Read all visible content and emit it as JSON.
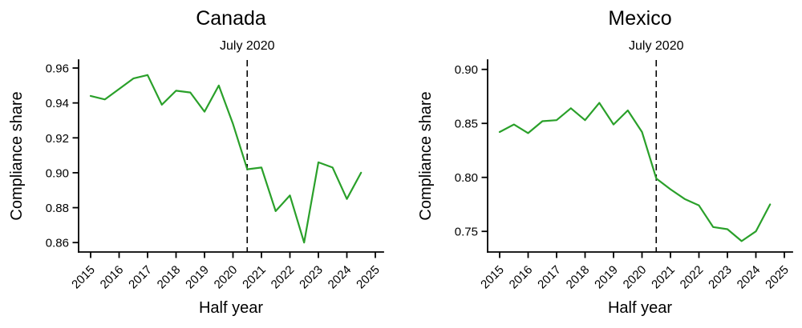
{
  "figure": {
    "background": "#ffffff",
    "text_color": "#000000",
    "axis_color": "#000000"
  },
  "chart_data": [
    {
      "type": "line",
      "title": "Canada",
      "xlabel": "Half year",
      "ylabel": "Compliance share",
      "series_name": "compliance-share",
      "line_color": "#2aa02a",
      "grid": false,
      "legend": null,
      "x": [
        2015,
        2015.5,
        2016,
        2016.5,
        2017,
        2017.5,
        2018,
        2018.5,
        2019,
        2019.5,
        2020,
        2020.5,
        2021,
        2021.5,
        2022,
        2022.5,
        2023,
        2023.5,
        2024,
        2024.5
      ],
      "values": [
        0.944,
        0.942,
        0.948,
        0.954,
        0.956,
        0.939,
        0.947,
        0.946,
        0.935,
        0.95,
        0.928,
        0.902,
        0.903,
        0.878,
        0.887,
        0.86,
        0.906,
        0.903,
        0.885,
        0.9
      ],
      "xticks": [
        2015,
        2016,
        2017,
        2018,
        2019,
        2020,
        2021,
        2022,
        2023,
        2024,
        2025
      ],
      "yticks": [
        0.86,
        0.88,
        0.9,
        0.92,
        0.94,
        0.96
      ],
      "xlim": [
        2014.577,
        2025.282
      ],
      "ylim": [
        0.8546,
        0.9646
      ],
      "vline": {
        "x": 2020.5,
        "label": "July 2020",
        "style": "dashed"
      }
    },
    {
      "type": "line",
      "title": "Mexico",
      "xlabel": "Half year",
      "ylabel": "Compliance share",
      "series_name": "compliance-share",
      "line_color": "#2aa02a",
      "grid": false,
      "legend": null,
      "x": [
        2015,
        2015.5,
        2016,
        2016.5,
        2017,
        2017.5,
        2018,
        2018.5,
        2019,
        2019.5,
        2020,
        2020.5,
        2021,
        2021.5,
        2022,
        2022.5,
        2023,
        2023.5,
        2024,
        2024.5
      ],
      "values": [
        0.842,
        0.849,
        0.841,
        0.852,
        0.853,
        0.864,
        0.853,
        0.869,
        0.849,
        0.862,
        0.842,
        0.799,
        0.789,
        0.78,
        0.774,
        0.754,
        0.752,
        0.741,
        0.75,
        0.775
      ],
      "xticks": [
        2015,
        2016,
        2017,
        2018,
        2019,
        2020,
        2021,
        2022,
        2023,
        2024,
        2025
      ],
      "yticks": [
        0.75,
        0.8,
        0.85,
        0.9
      ],
      "xlim": [
        2014.577,
        2025.282
      ],
      "ylim": [
        0.7309,
        0.9087
      ],
      "vline": {
        "x": 2020.5,
        "label": "July 2020",
        "style": "dashed"
      }
    }
  ]
}
